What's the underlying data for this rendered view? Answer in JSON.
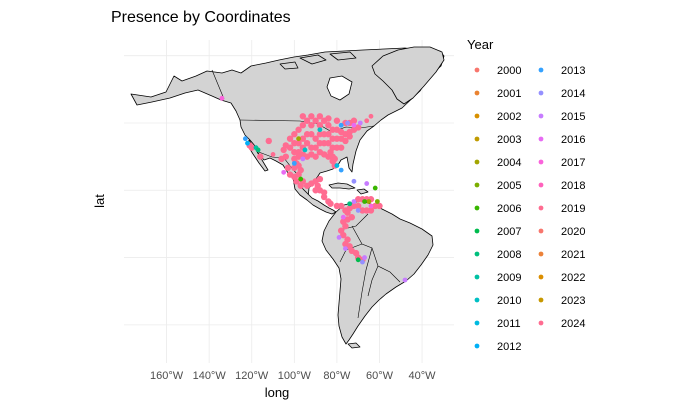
{
  "chart_data": {
    "type": "scatter",
    "title": "Presence by Coordinates",
    "xlabel": "long",
    "ylabel": "lat",
    "xlim": [
      -180,
      -25
    ],
    "ylim": [
      -62,
      82
    ],
    "x_ticks": [
      {
        "value": -160,
        "label": "160°W"
      },
      {
        "value": -140,
        "label": "140°W"
      },
      {
        "value": -120,
        "label": "120°W"
      },
      {
        "value": -100,
        "label": "100°W"
      },
      {
        "value": -80,
        "label": "80°W"
      },
      {
        "value": -60,
        "label": "60°W"
      },
      {
        "value": -40,
        "label": "40°W"
      }
    ],
    "y_grid": [
      -45,
      -15,
      15,
      45,
      75
    ],
    "grid": true,
    "legend": {
      "title": "Year",
      "position": "right",
      "columns": 2,
      "entries": [
        {
          "label": "2000",
          "color": "#F8766D"
        },
        {
          "label": "2001",
          "color": "#EA8331"
        },
        {
          "label": "2002",
          "color": "#D89000"
        },
        {
          "label": "2003",
          "color": "#C09B00"
        },
        {
          "label": "2004",
          "color": "#A3A500"
        },
        {
          "label": "2005",
          "color": "#7CAE00"
        },
        {
          "label": "2006",
          "color": "#39B600"
        },
        {
          "label": "2007",
          "color": "#00BB4E"
        },
        {
          "label": "2008",
          "color": "#00BF7D"
        },
        {
          "label": "2009",
          "color": "#00C1A3"
        },
        {
          "label": "2010",
          "color": "#00BFC4"
        },
        {
          "label": "2011",
          "color": "#00BAE0"
        },
        {
          "label": "2012",
          "color": "#00B0F6"
        },
        {
          "label": "2013",
          "color": "#35A2FF"
        },
        {
          "label": "2014",
          "color": "#9590FF"
        },
        {
          "label": "2015",
          "color": "#C77CFF"
        },
        {
          "label": "2016",
          "color": "#E76BF3"
        },
        {
          "label": "2017",
          "color": "#FA62DB"
        },
        {
          "label": "2018",
          "color": "#FF62BC"
        },
        {
          "label": "2019",
          "color": "#FF6C91"
        },
        {
          "label": "2020",
          "color": "#F8766D"
        },
        {
          "label": "2021",
          "color": "#EC8239"
        },
        {
          "label": "2022",
          "color": "#DB8E00"
        },
        {
          "label": "2023",
          "color": "#C79800"
        },
        {
          "label": "2024",
          "color": "#FF6C91"
        }
      ]
    },
    "points": [
      {
        "long": -134,
        "lat": 56,
        "year": "2017"
      },
      {
        "long": -123,
        "lat": 38,
        "year": "2013"
      },
      {
        "long": -122,
        "lat": 36,
        "year": "2012"
      },
      {
        "long": -118,
        "lat": 34,
        "year": "2009"
      },
      {
        "long": -117,
        "lat": 33,
        "year": "2008"
      },
      {
        "long": -110,
        "lat": 31,
        "year": "2024"
      },
      {
        "long": -98,
        "lat": 38,
        "year": "2004"
      },
      {
        "long": -95,
        "lat": 33,
        "year": "2010"
      },
      {
        "long": -96,
        "lat": 29,
        "year": "2015"
      },
      {
        "long": -100,
        "lat": 27,
        "year": "2013"
      },
      {
        "long": -105,
        "lat": 23,
        "year": "2016"
      },
      {
        "long": -97,
        "lat": 20,
        "year": "2006"
      },
      {
        "long": -75,
        "lat": 45,
        "year": "2014"
      },
      {
        "long": -72,
        "lat": 44,
        "year": "2016"
      },
      {
        "long": -69,
        "lat": 45,
        "year": "2015"
      },
      {
        "long": -78,
        "lat": 44,
        "year": "2013"
      },
      {
        "long": -66,
        "lat": 46,
        "year": "2024"
      },
      {
        "long": -64,
        "lat": 48,
        "year": "2024"
      },
      {
        "long": -88,
        "lat": 42,
        "year": "2010"
      },
      {
        "long": -80,
        "lat": 26,
        "year": "2011"
      },
      {
        "long": -78,
        "lat": 24,
        "year": "2013"
      },
      {
        "long": -72,
        "lat": 19,
        "year": "2014"
      },
      {
        "long": -66,
        "lat": 18,
        "year": "2015"
      },
      {
        "long": -62,
        "lat": 16,
        "year": "2006"
      },
      {
        "long": -65,
        "lat": 10,
        "year": "2004"
      },
      {
        "long": -61,
        "lat": 10,
        "year": "2005"
      },
      {
        "long": -67,
        "lat": 10,
        "year": "2006"
      },
      {
        "long": -74,
        "lat": 9,
        "year": "2008"
      },
      {
        "long": -72,
        "lat": 10,
        "year": "2015"
      },
      {
        "long": -70,
        "lat": 6,
        "year": "2014"
      },
      {
        "long": -77,
        "lat": 3,
        "year": "2016"
      },
      {
        "long": -64,
        "lat": 8,
        "year": "2017"
      },
      {
        "long": -79,
        "lat": -6,
        "year": "2015"
      },
      {
        "long": -76,
        "lat": -11,
        "year": "2015"
      },
      {
        "long": -70,
        "lat": -16,
        "year": "2007"
      },
      {
        "long": -68,
        "lat": -17,
        "year": "2014"
      },
      {
        "long": -67,
        "lat": -15,
        "year": "2015"
      },
      {
        "long": -48,
        "lat": -25,
        "year": "2015"
      }
    ],
    "clusters": [
      {
        "year": "2024",
        "pts": [
          [
            -100,
            40
          ],
          [
            -98,
            42
          ],
          [
            -96,
            44
          ],
          [
            -94,
            46
          ],
          [
            -92,
            44
          ],
          [
            -90,
            46
          ],
          [
            -88,
            44
          ],
          [
            -86,
            46
          ],
          [
            -84,
            44
          ],
          [
            -82,
            42
          ],
          [
            -80,
            42
          ],
          [
            -78,
            41
          ],
          [
            -76,
            40
          ],
          [
            -74,
            41
          ],
          [
            -72,
            42
          ],
          [
            -70,
            43
          ],
          [
            -100,
            36
          ],
          [
            -98,
            36
          ],
          [
            -96,
            38
          ],
          [
            -94,
            40
          ],
          [
            -92,
            40
          ],
          [
            -90,
            38
          ],
          [
            -88,
            40
          ],
          [
            -86,
            40
          ],
          [
            -84,
            40
          ],
          [
            -82,
            38
          ],
          [
            -80,
            38
          ],
          [
            -78,
            38
          ],
          [
            -76,
            37
          ],
          [
            -74,
            39
          ],
          [
            -100,
            32
          ],
          [
            -98,
            32
          ],
          [
            -96,
            34
          ],
          [
            -94,
            36
          ],
          [
            -92,
            34
          ],
          [
            -90,
            34
          ],
          [
            -88,
            36
          ],
          [
            -86,
            36
          ],
          [
            -84,
            36
          ],
          [
            -82,
            34
          ],
          [
            -80,
            34
          ],
          [
            -78,
            34
          ],
          [
            -100,
            29
          ],
          [
            -98,
            30
          ],
          [
            -96,
            31
          ],
          [
            -94,
            30
          ],
          [
            -92,
            31
          ],
          [
            -90,
            30
          ],
          [
            -88,
            32
          ],
          [
            -86,
            31
          ],
          [
            -84,
            30
          ],
          [
            -82,
            30
          ],
          [
            -82,
            28
          ],
          [
            -81,
            26
          ],
          [
            -81,
            29
          ],
          [
            -83,
            32
          ],
          [
            -99,
            27
          ],
          [
            -98,
            26
          ],
          [
            -97,
            24
          ],
          [
            -100,
            25
          ],
          [
            -103,
            25
          ],
          [
            -102,
            22
          ],
          [
            -100,
            21
          ],
          [
            -98,
            22
          ],
          [
            -99,
            19
          ],
          [
            -96,
            19
          ],
          [
            -97,
            17
          ],
          [
            -94,
            17
          ],
          [
            -92,
            18
          ],
          [
            -90,
            19
          ],
          [
            -88,
            20
          ],
          [
            -89,
            17
          ],
          [
            -90,
            15
          ],
          [
            -88,
            15
          ],
          [
            -86,
            14
          ],
          [
            -86,
            12
          ],
          [
            -84,
            10
          ],
          [
            -83,
            9
          ],
          [
            -80,
            8
          ],
          [
            -78,
            8
          ],
          [
            -76,
            6
          ],
          [
            -74,
            7
          ],
          [
            -75,
            5
          ],
          [
            -73,
            3
          ],
          [
            -75,
            2
          ],
          [
            -77,
            1
          ],
          [
            -76,
            -1
          ],
          [
            -78,
            -3
          ],
          [
            -77,
            -5
          ],
          [
            -75,
            -7
          ],
          [
            -76,
            -9
          ],
          [
            -74,
            -10
          ],
          [
            -73,
            -12
          ],
          [
            -71,
            -13
          ],
          [
            -70,
            -15
          ],
          [
            -68,
            -16
          ],
          [
            -72,
            8
          ],
          [
            -70,
            8
          ],
          [
            -68,
            6
          ],
          [
            -66,
            6
          ],
          [
            -64,
            6
          ],
          [
            -62,
            8
          ],
          [
            -70,
            11
          ],
          [
            -68,
            11
          ],
          [
            -66,
            11
          ],
          [
            -64,
            11
          ],
          [
            -60,
            8
          ],
          [
            -105,
            33
          ],
          [
            -106,
            29
          ],
          [
            -104,
            30
          ],
          [
            -104,
            35
          ],
          [
            -102,
            38
          ],
          [
            -102,
            34
          ],
          [
            -120,
            34
          ],
          [
            -121,
            35
          ],
          [
            -116,
            30
          ],
          [
            -112,
            37
          ],
          [
            -96,
            48
          ],
          [
            -92,
            48
          ],
          [
            -88,
            48
          ],
          [
            -84,
            47
          ],
          [
            -80,
            46
          ],
          [
            -76,
            45
          ],
          [
            -74,
            45
          ],
          [
            -72,
            46
          ]
        ]
      }
    ]
  }
}
